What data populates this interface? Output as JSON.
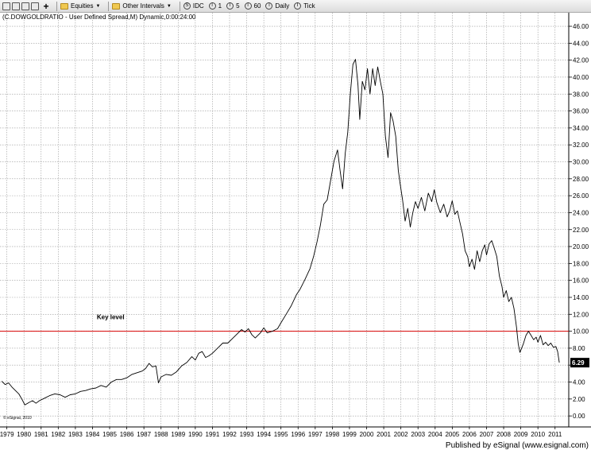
{
  "toolbar": {
    "equities_label": "Equities",
    "other_intervals_label": "Other Intervals",
    "intervals": [
      {
        "label": "IDC",
        "icon": "S"
      },
      {
        "label": "1",
        "icon": "I"
      },
      {
        "label": "5",
        "icon": "I"
      },
      {
        "label": "60",
        "icon": "I"
      },
      {
        "label": "Daily",
        "icon": "I"
      },
      {
        "label": "Tick",
        "icon": "I"
      }
    ]
  },
  "chart_data": {
    "type": "line",
    "title": "(C.DOWGOLDRATIO - User Defined Spread,M) Dynamic,0:00:24:00",
    "copyright": "© eSignal, 2010",
    "publisher": "Published by eSignal (www.esignal.com)",
    "annotation": "Key level",
    "key_level": 10,
    "key_level_color": "#d80000",
    "line_color": "#000000",
    "grid": true,
    "grid_style": "dotted",
    "last_value_label": "6.29",
    "ylim": [
      -1.3,
      47.6
    ],
    "xlim": [
      1978.6,
      2011.8
    ],
    "y_ticks": [
      "0.00",
      "2.00",
      "4.00",
      "6.00",
      "8.00",
      "10.00",
      "12.00",
      "14.00",
      "16.00",
      "18.00",
      "20.00",
      "22.00",
      "24.00",
      "26.00",
      "28.00",
      "30.00",
      "32.00",
      "34.00",
      "36.00",
      "38.00",
      "40.00",
      "42.00",
      "44.00",
      "46.00"
    ],
    "x_ticks": [
      "1979",
      "1980",
      "1981",
      "1982",
      "1983",
      "1984",
      "1985",
      "1986",
      "1987",
      "1988",
      "1989",
      "1990",
      "1991",
      "1992",
      "1993",
      "1994",
      "1995",
      "1996",
      "1997",
      "1998",
      "1999",
      "2000",
      "2001",
      "2002",
      "2003",
      "2004",
      "2005",
      "2006",
      "2007",
      "2008",
      "2009",
      "2010",
      "2011"
    ],
    "series": [
      {
        "values": [
          [
            1978.7,
            4.1
          ],
          [
            1978.9,
            3.7
          ],
          [
            1979.1,
            3.9
          ],
          [
            1979.3,
            3.4
          ],
          [
            1979.5,
            3.0
          ],
          [
            1979.7,
            2.6
          ],
          [
            1979.9,
            1.9
          ],
          [
            1980.05,
            1.3
          ],
          [
            1980.3,
            1.6
          ],
          [
            1980.5,
            1.8
          ],
          [
            1980.7,
            1.5
          ],
          [
            1980.9,
            1.8
          ],
          [
            1981.2,
            2.1
          ],
          [
            1981.5,
            2.4
          ],
          [
            1981.8,
            2.6
          ],
          [
            1982.1,
            2.5
          ],
          [
            1982.4,
            2.2
          ],
          [
            1982.7,
            2.5
          ],
          [
            1983.0,
            2.6
          ],
          [
            1983.3,
            2.9
          ],
          [
            1983.6,
            3.0
          ],
          [
            1983.9,
            3.2
          ],
          [
            1984.2,
            3.3
          ],
          [
            1984.5,
            3.6
          ],
          [
            1984.8,
            3.4
          ],
          [
            1985.1,
            4.0
          ],
          [
            1985.4,
            4.3
          ],
          [
            1985.7,
            4.3
          ],
          [
            1986.0,
            4.5
          ],
          [
            1986.3,
            4.9
          ],
          [
            1986.6,
            5.1
          ],
          [
            1986.9,
            5.3
          ],
          [
            1987.1,
            5.6
          ],
          [
            1987.3,
            6.2
          ],
          [
            1987.5,
            5.8
          ],
          [
            1987.7,
            5.9
          ],
          [
            1987.85,
            3.9
          ],
          [
            1988.0,
            4.6
          ],
          [
            1988.3,
            4.9
          ],
          [
            1988.6,
            4.8
          ],
          [
            1988.9,
            5.2
          ],
          [
            1989.2,
            5.9
          ],
          [
            1989.5,
            6.3
          ],
          [
            1989.8,
            7.0
          ],
          [
            1990.0,
            6.6
          ],
          [
            1990.2,
            7.4
          ],
          [
            1990.4,
            7.6
          ],
          [
            1990.6,
            6.9
          ],
          [
            1990.8,
            7.1
          ],
          [
            1991.0,
            7.4
          ],
          [
            1991.3,
            8.0
          ],
          [
            1991.6,
            8.6
          ],
          [
            1991.9,
            8.6
          ],
          [
            1992.1,
            9.0
          ],
          [
            1992.4,
            9.6
          ],
          [
            1992.7,
            10.2
          ],
          [
            1992.9,
            9.9
          ],
          [
            1993.1,
            10.3
          ],
          [
            1993.3,
            9.6
          ],
          [
            1993.5,
            9.2
          ],
          [
            1993.8,
            9.8
          ],
          [
            1994.0,
            10.4
          ],
          [
            1994.2,
            9.8
          ],
          [
            1994.5,
            10.0
          ],
          [
            1994.8,
            10.3
          ],
          [
            1995.0,
            11.0
          ],
          [
            1995.3,
            12.0
          ],
          [
            1995.6,
            13.0
          ],
          [
            1995.9,
            14.3
          ],
          [
            1996.1,
            14.9
          ],
          [
            1996.4,
            16.1
          ],
          [
            1996.7,
            17.4
          ],
          [
            1996.9,
            18.8
          ],
          [
            1997.1,
            20.5
          ],
          [
            1997.3,
            22.5
          ],
          [
            1997.5,
            25.0
          ],
          [
            1997.7,
            25.5
          ],
          [
            1997.9,
            27.8
          ],
          [
            1998.1,
            30.1
          ],
          [
            1998.3,
            31.4
          ],
          [
            1998.45,
            29.0
          ],
          [
            1998.6,
            26.8
          ],
          [
            1998.75,
            31.0
          ],
          [
            1998.9,
            33.5
          ],
          [
            1999.05,
            38.0
          ],
          [
            1999.2,
            41.5
          ],
          [
            1999.35,
            42.1
          ],
          [
            1999.5,
            39.0
          ],
          [
            1999.6,
            35.0
          ],
          [
            1999.75,
            39.5
          ],
          [
            1999.9,
            38.5
          ],
          [
            2000.05,
            41.0
          ],
          [
            2000.2,
            38.0
          ],
          [
            2000.35,
            41.0
          ],
          [
            2000.5,
            39.0
          ],
          [
            2000.65,
            41.2
          ],
          [
            2000.8,
            39.5
          ],
          [
            2000.95,
            38.0
          ],
          [
            2001.1,
            33.0
          ],
          [
            2001.25,
            30.5
          ],
          [
            2001.4,
            35.8
          ],
          [
            2001.55,
            34.8
          ],
          [
            2001.7,
            33.0
          ],
          [
            2001.85,
            29.0
          ],
          [
            2001.95,
            27.5
          ],
          [
            2002.1,
            25.5
          ],
          [
            2002.25,
            23.0
          ],
          [
            2002.4,
            24.5
          ],
          [
            2002.55,
            22.3
          ],
          [
            2002.7,
            24.0
          ],
          [
            2002.85,
            25.3
          ],
          [
            2003.0,
            24.5
          ],
          [
            2003.2,
            25.8
          ],
          [
            2003.4,
            24.2
          ],
          [
            2003.6,
            26.3
          ],
          [
            2003.8,
            25.3
          ],
          [
            2003.95,
            26.7
          ],
          [
            2004.1,
            25.2
          ],
          [
            2004.3,
            24.0
          ],
          [
            2004.5,
            25.0
          ],
          [
            2004.7,
            23.5
          ],
          [
            2004.85,
            24.2
          ],
          [
            2005.0,
            25.4
          ],
          [
            2005.15,
            23.8
          ],
          [
            2005.3,
            24.2
          ],
          [
            2005.45,
            22.8
          ],
          [
            2005.6,
            21.5
          ],
          [
            2005.75,
            19.5
          ],
          [
            2005.9,
            18.8
          ],
          [
            2006.0,
            17.6
          ],
          [
            2006.15,
            18.5
          ],
          [
            2006.3,
            17.3
          ],
          [
            2006.45,
            19.5
          ],
          [
            2006.6,
            18.2
          ],
          [
            2006.75,
            19.5
          ],
          [
            2006.9,
            20.2
          ],
          [
            2007.0,
            19.0
          ],
          [
            2007.15,
            20.3
          ],
          [
            2007.3,
            20.7
          ],
          [
            2007.45,
            19.8
          ],
          [
            2007.6,
            18.8
          ],
          [
            2007.75,
            16.5
          ],
          [
            2007.9,
            15.3
          ],
          [
            2008.0,
            14.0
          ],
          [
            2008.15,
            14.8
          ],
          [
            2008.3,
            13.5
          ],
          [
            2008.45,
            14.0
          ],
          [
            2008.6,
            12.7
          ],
          [
            2008.75,
            10.5
          ],
          [
            2008.85,
            8.5
          ],
          [
            2008.95,
            7.5
          ],
          [
            2009.05,
            8.0
          ],
          [
            2009.15,
            8.5
          ],
          [
            2009.3,
            9.5
          ],
          [
            2009.45,
            10.0
          ],
          [
            2009.6,
            9.5
          ],
          [
            2009.75,
            9.0
          ],
          [
            2009.9,
            9.3
          ],
          [
            2010.0,
            8.7
          ],
          [
            2010.15,
            9.5
          ],
          [
            2010.3,
            8.4
          ],
          [
            2010.45,
            8.7
          ],
          [
            2010.6,
            8.3
          ],
          [
            2010.75,
            8.6
          ],
          [
            2010.9,
            8.1
          ],
          [
            2011.05,
            8.2
          ],
          [
            2011.15,
            7.6
          ],
          [
            2011.25,
            6.29
          ]
        ]
      }
    ]
  }
}
